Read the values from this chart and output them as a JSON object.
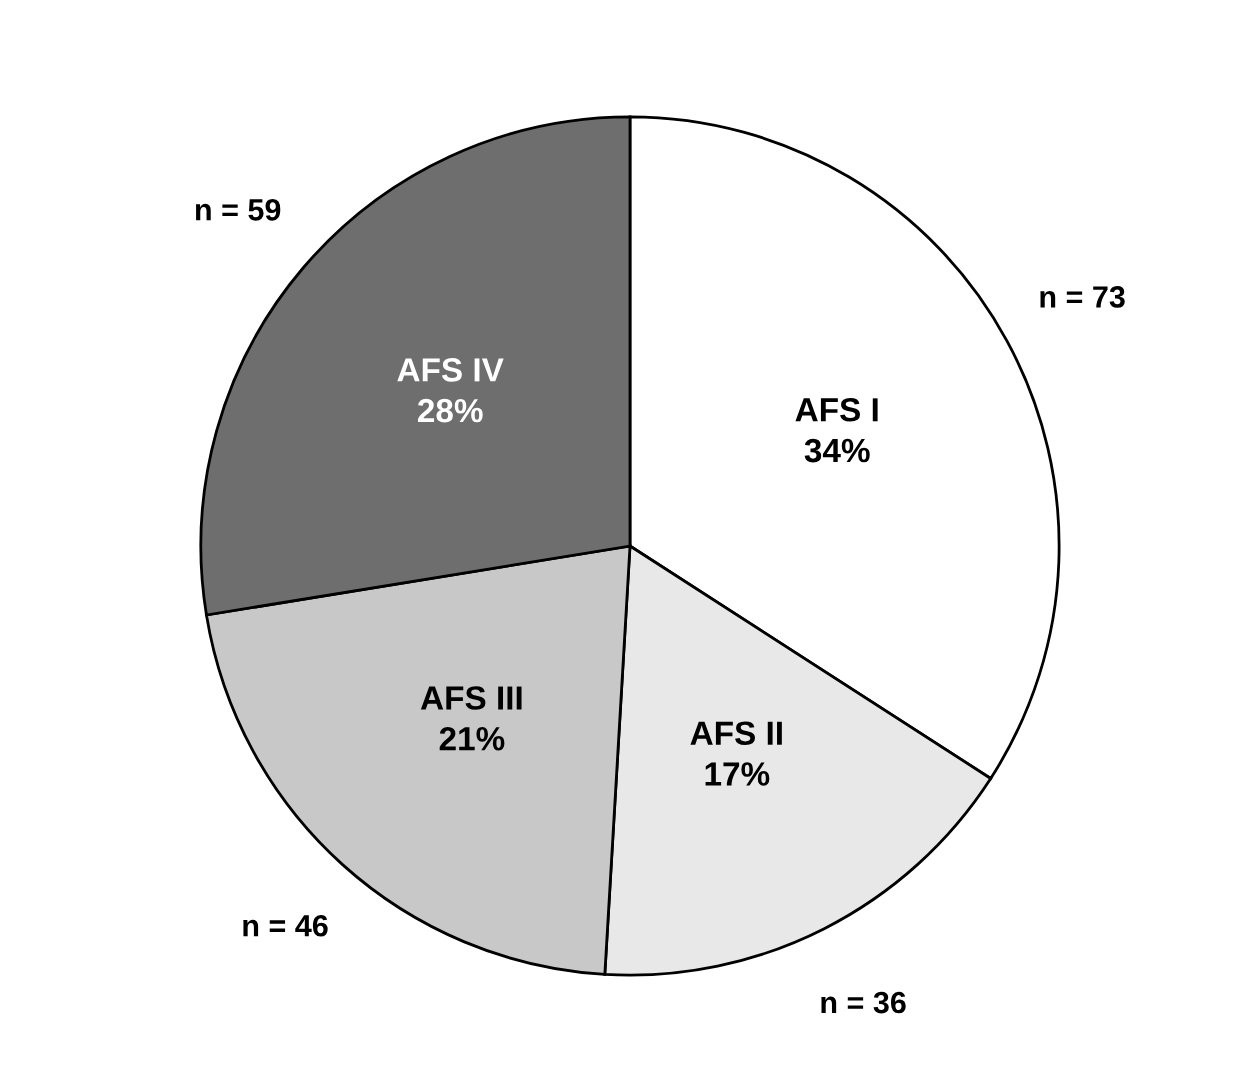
{
  "chart_data": {
    "type": "pie",
    "categories": [
      "AFS I",
      "AFS II",
      "AFS III",
      "AFS IV"
    ],
    "values": [
      73,
      36,
      46,
      59
    ],
    "value_labels": [
      "n = 73",
      "n = 36",
      "n = 46",
      "n = 59"
    ],
    "annotations": [
      "34%",
      "17%",
      "21%",
      "28%"
    ],
    "colors": [
      "#ffffff",
      "#e8e8e8",
      "#c8c8c8",
      "#6e6e6e"
    ],
    "legend": false
  }
}
